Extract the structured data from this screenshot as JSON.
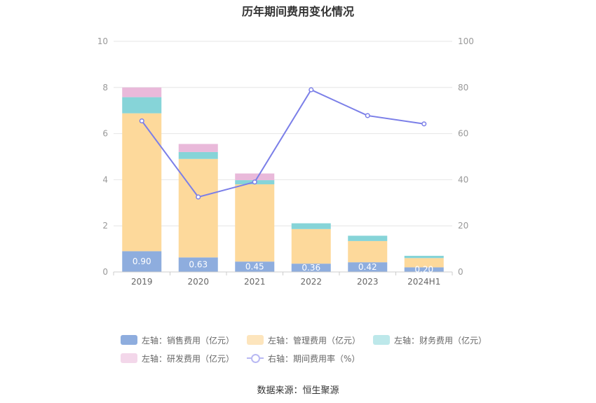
{
  "chart_data": {
    "type": "bar",
    "title": "历年期间费用变化情况",
    "categories": [
      "2019",
      "2020",
      "2021",
      "2022",
      "2023",
      "2024H1"
    ],
    "series": [
      {
        "name": "左轴：销售费用（亿元）",
        "type": "bar",
        "axis": "left",
        "color": "#8eadde",
        "values": [
          0.9,
          0.63,
          0.45,
          0.36,
          0.42,
          0.2
        ],
        "labels": [
          "0.90",
          "0.63",
          "0.45",
          "0.36",
          "0.42",
          "0.20"
        ]
      },
      {
        "name": "左轴：管理费用（亿元）",
        "type": "bar",
        "axis": "left",
        "color": "#fdd99b",
        "values": [
          5.98,
          4.27,
          3.35,
          1.5,
          0.92,
          0.4
        ]
      },
      {
        "name": "左轴：财务费用（亿元）",
        "type": "bar",
        "axis": "left",
        "color": "#86d4d8",
        "values": [
          0.7,
          0.3,
          0.18,
          0.25,
          0.23,
          0.1
        ]
      },
      {
        "name": "左轴：研发费用（亿元）",
        "type": "bar",
        "axis": "left",
        "color": "#e9b9da",
        "values": [
          0.42,
          0.35,
          0.29,
          0.0,
          0.0,
          0.0
        ]
      },
      {
        "name": "右轴：期间费用率（%）",
        "type": "line",
        "axis": "right",
        "color": "#7b7fe8",
        "values": [
          65.5,
          32.5,
          39.0,
          79.0,
          67.8,
          64.2
        ]
      }
    ],
    "left_axis": {
      "min": 0,
      "max": 10,
      "ticks": [
        "0",
        "2",
        "4",
        "6",
        "8",
        "10"
      ]
    },
    "right_axis": {
      "min": 0,
      "max": 100,
      "ticks": [
        "0",
        "20",
        "40",
        "60",
        "80",
        "100"
      ]
    },
    "grid": true,
    "legend_position": "bottom"
  },
  "legend": {
    "row1": [
      "左轴：销售费用（亿元）",
      "左轴：管理费用（亿元）",
      "左轴：财务费用（亿元）"
    ],
    "row2": [
      "左轴：研发费用（亿元）",
      "右轴：期间费用率（%）"
    ],
    "colors": [
      "#8eadde",
      "#fde5bd",
      "#bde8ea",
      "#f3d7ea"
    ]
  },
  "source": "数据来源：恒生聚源"
}
